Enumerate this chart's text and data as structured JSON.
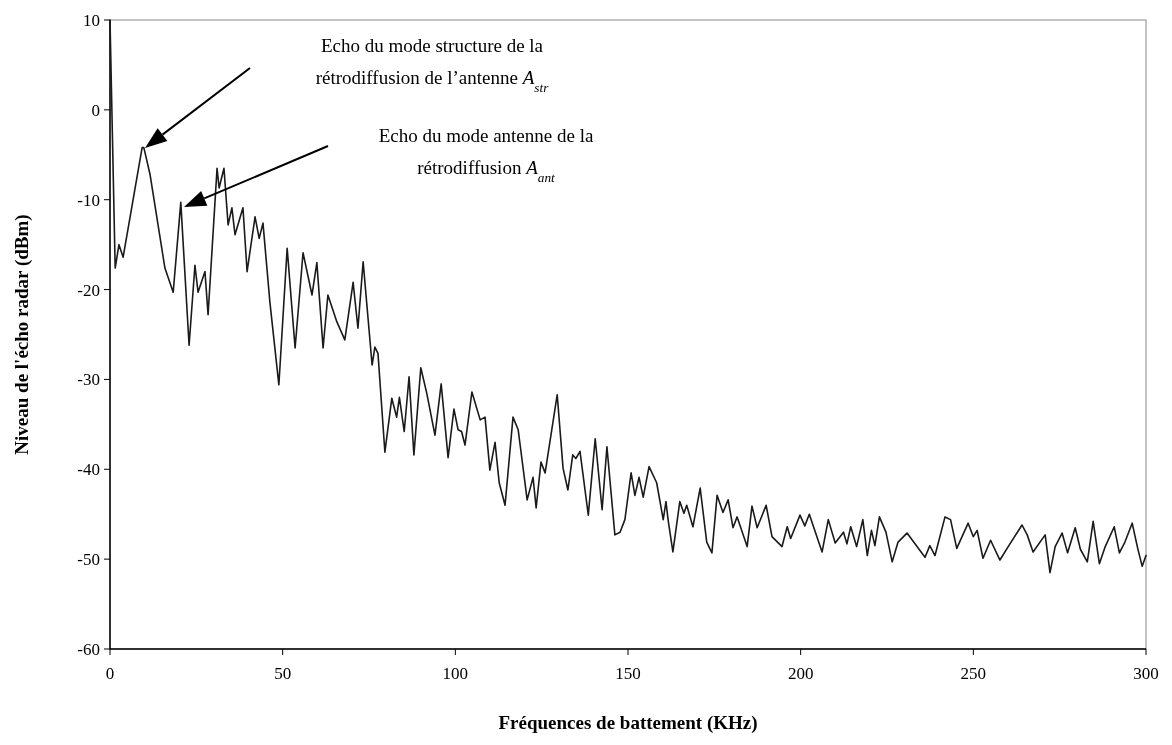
{
  "chart_data": {
    "type": "line",
    "xlabel": "Fréquences de battement  (KHz)",
    "ylabel": "Niveau de l'écho radar (dBm)",
    "xlim": [
      0,
      300
    ],
    "ylim": [
      -60,
      10
    ],
    "xticks": [
      0,
      50,
      100,
      150,
      200,
      250,
      300
    ],
    "yticks": [
      -60,
      -50,
      -40,
      -30,
      -20,
      -10,
      0,
      10
    ],
    "grid": false,
    "marker": "none",
    "line_style": "solid",
    "annotations": [
      "Echo du mode structure de la\nrétrodiffusion de l’antenne A$_{str}$",
      "Echo du mode antenne de la\nrétrodiffusion  A$_{ant}$"
    ],
    "series": [
      {
        "color": "#1a1a1a",
        "x": [
          0,
          1.5,
          2.6,
          3.8,
          9.3,
          9.8,
          11.6,
          15.9,
          18.3,
          20.5,
          22.9,
          24.6,
          25.5,
          27.5,
          28.4,
          31,
          31.6,
          33,
          34.2,
          35.3,
          36.2,
          38.5,
          39.7,
          42,
          43.2,
          44.3,
          46.3,
          48.9,
          51.3,
          53.6,
          55.9,
          58.5,
          59.9,
          61.7,
          63.1,
          65.7,
          68,
          70.4,
          71.8,
          73.3,
          75.9,
          76.7,
          77.6,
          79.6,
          81.6,
          83,
          83.8,
          85.2,
          86.6,
          88,
          90,
          91.7,
          94.1,
          95.9,
          97.9,
          99.6,
          100.8,
          101.8,
          102.8,
          104.8,
          107.2,
          108.6,
          110,
          111.5,
          112.7,
          114.4,
          116.7,
          118.2,
          120.8,
          122.5,
          123.4,
          124.8,
          126,
          129.5,
          131.2,
          132.6,
          134,
          134.9,
          136.1,
          138.5,
          140.5,
          142.5,
          143.9,
          146.2,
          147.7,
          149.1,
          150.9,
          152,
          153.2,
          154.4,
          156.1,
          158.3,
          160.2,
          161,
          161.6,
          163,
          165,
          166.2,
          167,
          168.8,
          170.9,
          172.8,
          174.3,
          175.8,
          177.5,
          179,
          180.4,
          181.6,
          184.5,
          185.9,
          187.4,
          190,
          191.7,
          194.6,
          196.1,
          197.1,
          199.8,
          201.2,
          202.5,
          206.2,
          208,
          210,
          212.4,
          213.4,
          214.5,
          216.2,
          218,
          219.3,
          220.5,
          221.5,
          222.8,
          224.7,
          226.5,
          228.2,
          230.8,
          236,
          237.4,
          238.9,
          241.8,
          243.4,
          245.2,
          248.5,
          250,
          251.1,
          252.8,
          255,
          257.7,
          260.1,
          264.1,
          265.6,
          267.3,
          270.8,
          272.2,
          273.7,
          275.7,
          277.3,
          279.5,
          281,
          283,
          284.7,
          286.5,
          288.2,
          290.8,
          292.3,
          293.9,
          296,
          297.6,
          298.9,
          300
        ],
        "values": [
          10,
          -17.6,
          -15,
          -16.4,
          -4.2,
          -4.2,
          -7.2,
          -17.6,
          -20.3,
          -10.3,
          -26.2,
          -17.3,
          -20.3,
          -18,
          -22.8,
          -6.5,
          -8.7,
          -6.5,
          -12.8,
          -10.9,
          -13.9,
          -10.9,
          -18,
          -11.9,
          -14.3,
          -12.6,
          -21.4,
          -30.6,
          -15.4,
          -26.5,
          -15.9,
          -20.6,
          -17,
          -26.5,
          -20.6,
          -23.6,
          -25.6,
          -19.2,
          -24.3,
          -16.9,
          -28.4,
          -26.4,
          -27.1,
          -38.1,
          -32.1,
          -34.2,
          -32,
          -35.8,
          -29.7,
          -38.4,
          -28.7,
          -31.5,
          -36.2,
          -30.5,
          -38.7,
          -33.3,
          -35.6,
          -35.8,
          -37.3,
          -31.4,
          -34.5,
          -34.2,
          -40.1,
          -37,
          -41.5,
          -44,
          -34.2,
          -35.6,
          -43.4,
          -40.9,
          -44.3,
          -39.2,
          -40.4,
          -31.7,
          -39.9,
          -42.3,
          -38.4,
          -38.8,
          -38,
          -45.1,
          -36.6,
          -44.5,
          -37.5,
          -47.3,
          -47,
          -45.6,
          -40.4,
          -42.9,
          -40.9,
          -43.1,
          -39.7,
          -41.5,
          -45.6,
          -43.6,
          -45.6,
          -49.2,
          -43.6,
          -44.9,
          -44,
          -46.4,
          -42.1,
          -48.1,
          -49.3,
          -42.9,
          -44.8,
          -43.4,
          -46.5,
          -45.3,
          -48.6,
          -44.1,
          -46.5,
          -44,
          -47.5,
          -48.6,
          -46.4,
          -47.7,
          -45.1,
          -46.3,
          -45,
          -49.2,
          -45.6,
          -48.2,
          -47,
          -48.3,
          -46.4,
          -48.6,
          -45.6,
          -49.6,
          -46.8,
          -48.5,
          -45.3,
          -47,
          -50.3,
          -48.1,
          -47.1,
          -49.8,
          -48.5,
          -49.6,
          -45.3,
          -45.6,
          -48.8,
          -46,
          -47.5,
          -46.8,
          -49.9,
          -47.9,
          -50.1,
          -48.6,
          -46.2,
          -47.3,
          -49.2,
          -47.3,
          -51.5,
          -48.6,
          -47.1,
          -49.3,
          -46.5,
          -48.9,
          -50.3,
          -45.8,
          -50.5,
          -48.6,
          -46.4,
          -49.3,
          -48.1,
          -46,
          -48.8,
          -50.8,
          -49.6
        ]
      }
    ]
  }
}
